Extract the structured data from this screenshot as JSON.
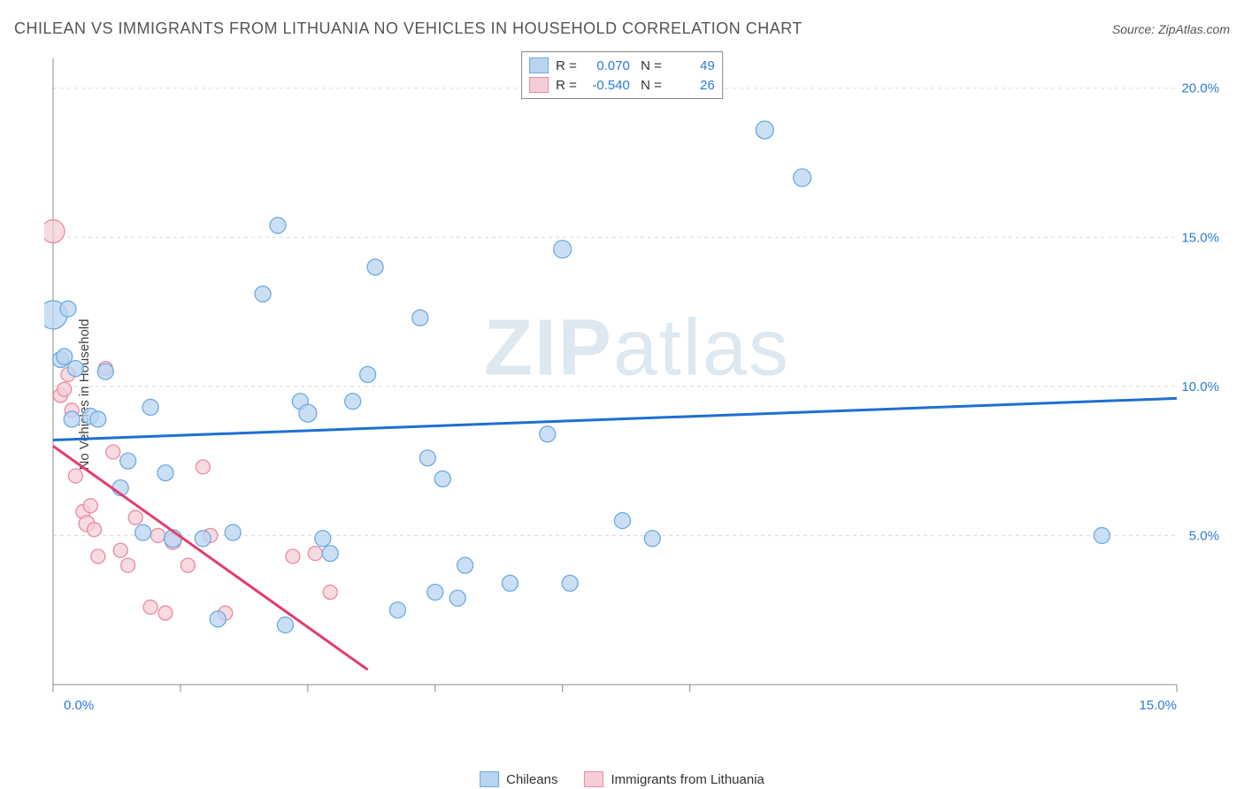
{
  "header": {
    "title": "CHILEAN VS IMMIGRANTS FROM LITHUANIA NO VEHICLES IN HOUSEHOLD CORRELATION CHART",
    "source": "Source: ZipAtlas.com"
  },
  "chart": {
    "type": "scatter",
    "ylabel": "No Vehicles in Household",
    "xlim": [
      0,
      15
    ],
    "ylim": [
      0,
      21
    ],
    "xticks": [
      0,
      1.7,
      3.4,
      5.1,
      6.8,
      8.5,
      15
    ],
    "xticklabels_shown": {
      "0": "0.0%",
      "15": "15.0%"
    },
    "yticks": [
      5,
      10,
      15,
      20
    ],
    "yticklabels": {
      "5": "5.0%",
      "10": "10.0%",
      "15": "15.0%",
      "20": "20.0%"
    },
    "grid_color": "#d9d9d9",
    "grid_dash": "4 4",
    "axis_color": "#888888",
    "background_color": "#ffffff",
    "tick_label_color": "#2b7ad8",
    "watermark": "ZIPatlas",
    "series": [
      {
        "name": "Chileans",
        "fill": "#b9d4f0",
        "stroke": "#6eaae2",
        "trend_color": "#1f6fd1",
        "trend": {
          "x1": 0,
          "y1": 8.2,
          "x2": 15,
          "y2": 9.6
        },
        "R": "0.070",
        "N": "49",
        "points": [
          [
            0.0,
            12.4,
            16
          ],
          [
            0.1,
            10.9,
            9
          ],
          [
            0.15,
            11.0,
            9
          ],
          [
            0.2,
            12.6,
            9
          ],
          [
            0.25,
            8.9,
            9
          ],
          [
            0.3,
            10.6,
            9
          ],
          [
            0.5,
            9.0,
            9
          ],
          [
            0.6,
            8.9,
            9
          ],
          [
            0.7,
            10.5,
            9
          ],
          [
            0.9,
            6.6,
            9
          ],
          [
            1.0,
            7.5,
            9
          ],
          [
            1.2,
            5.1,
            9
          ],
          [
            1.3,
            9.3,
            9
          ],
          [
            1.5,
            7.1,
            9
          ],
          [
            1.6,
            4.9,
            10
          ],
          [
            2.0,
            4.9,
            9
          ],
          [
            2.2,
            2.2,
            9
          ],
          [
            2.4,
            5.1,
            9
          ],
          [
            2.8,
            13.1,
            9
          ],
          [
            3.0,
            15.4,
            9
          ],
          [
            3.1,
            2.0,
            9
          ],
          [
            3.3,
            9.5,
            9
          ],
          [
            3.4,
            9.1,
            10
          ],
          [
            3.6,
            4.9,
            9
          ],
          [
            3.7,
            4.4,
            9
          ],
          [
            4.0,
            9.5,
            9
          ],
          [
            4.2,
            10.4,
            9
          ],
          [
            4.3,
            14.0,
            9
          ],
          [
            4.6,
            2.5,
            9
          ],
          [
            4.9,
            12.3,
            9
          ],
          [
            5.0,
            7.6,
            9
          ],
          [
            5.1,
            3.1,
            9
          ],
          [
            5.2,
            6.9,
            9
          ],
          [
            5.4,
            2.9,
            9
          ],
          [
            5.5,
            4.0,
            9
          ],
          [
            6.1,
            3.4,
            9
          ],
          [
            6.6,
            8.4,
            9
          ],
          [
            6.8,
            14.6,
            10
          ],
          [
            6.9,
            3.4,
            9
          ],
          [
            7.6,
            5.5,
            9
          ],
          [
            8.0,
            4.9,
            9
          ],
          [
            9.5,
            18.6,
            10
          ],
          [
            10.0,
            17.0,
            10
          ],
          [
            14.0,
            5.0,
            9
          ]
        ]
      },
      {
        "name": "Immigrants from Lithuania",
        "fill": "#f6cdd7",
        "stroke": "#e98ba3",
        "trend_color": "#e23d6c",
        "trend": {
          "x1": 0,
          "y1": 8.0,
          "x2": 4.2,
          "y2": 0.5
        },
        "R": "-0.540",
        "N": "26",
        "points": [
          [
            0.0,
            15.2,
            13
          ],
          [
            0.1,
            9.7,
            8
          ],
          [
            0.15,
            9.9,
            8
          ],
          [
            0.2,
            10.4,
            8
          ],
          [
            0.25,
            9.2,
            8
          ],
          [
            0.3,
            7.0,
            8
          ],
          [
            0.4,
            5.8,
            8
          ],
          [
            0.45,
            5.4,
            9
          ],
          [
            0.5,
            6.0,
            8
          ],
          [
            0.55,
            5.2,
            8
          ],
          [
            0.6,
            4.3,
            8
          ],
          [
            0.7,
            10.6,
            8
          ],
          [
            0.8,
            7.8,
            8
          ],
          [
            0.9,
            4.5,
            8
          ],
          [
            1.0,
            4.0,
            8
          ],
          [
            1.1,
            5.6,
            8
          ],
          [
            1.3,
            2.6,
            8
          ],
          [
            1.4,
            5.0,
            8
          ],
          [
            1.5,
            2.4,
            8
          ],
          [
            1.6,
            4.8,
            9
          ],
          [
            1.8,
            4.0,
            8
          ],
          [
            2.0,
            7.3,
            8
          ],
          [
            2.1,
            5.0,
            8
          ],
          [
            2.3,
            2.4,
            8
          ],
          [
            3.2,
            4.3,
            8
          ],
          [
            3.5,
            4.4,
            8
          ],
          [
            3.7,
            3.1,
            8
          ]
        ]
      }
    ]
  }
}
